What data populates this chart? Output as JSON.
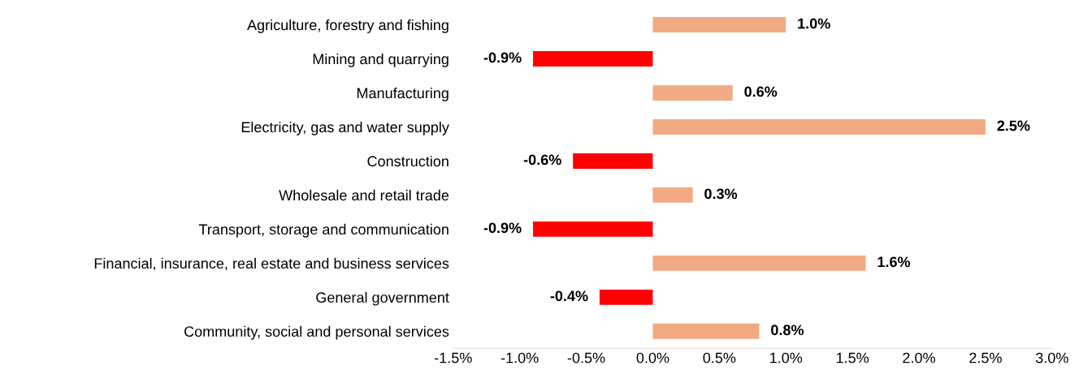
{
  "chart_data": {
    "type": "bar",
    "orientation": "horizontal",
    "categories": [
      "Agriculture, forestry and fishing",
      "Mining and quarrying",
      "Manufacturing",
      "Electricity, gas and water supply",
      "Construction",
      "Wholesale and retail trade",
      "Transport, storage and communication",
      "Financial, insurance, real estate and business services",
      "General government",
      "Community, social and personal services"
    ],
    "values": [
      1.0,
      -0.9,
      0.6,
      2.5,
      -0.6,
      0.3,
      -0.9,
      1.6,
      -0.4,
      0.8
    ],
    "colors": [
      "#f2aa84",
      "#ff0000",
      "#f2aa84",
      "#f2aa84",
      "#ff0000",
      "#f2aa84",
      "#ff0000",
      "#f2aa84",
      "#ff0000",
      "#f2aa84"
    ],
    "value_labels": [
      "1.0%",
      "-0.9%",
      "0.6%",
      "2.5%",
      "-0.6%",
      "0.3%",
      "-0.9%",
      "1.6%",
      "-0.4%",
      "0.8%"
    ],
    "xlim": [
      -1.5,
      3.0
    ],
    "xticks": [
      {
        "value": -1.5,
        "label": "-1.5%"
      },
      {
        "value": -1.0,
        "label": "-1.0%"
      },
      {
        "value": -0.5,
        "label": "-0.5%"
      },
      {
        "value": 0.0,
        "label": "0.0%"
      },
      {
        "value": 0.5,
        "label": "0.5%"
      },
      {
        "value": 1.0,
        "label": "1.0%"
      },
      {
        "value": 1.5,
        "label": "1.5%"
      },
      {
        "value": 2.0,
        "label": "2.0%"
      },
      {
        "value": 2.5,
        "label": "2.5%"
      },
      {
        "value": 3.0,
        "label": "3.0%"
      }
    ],
    "grid": false,
    "legend": false
  }
}
